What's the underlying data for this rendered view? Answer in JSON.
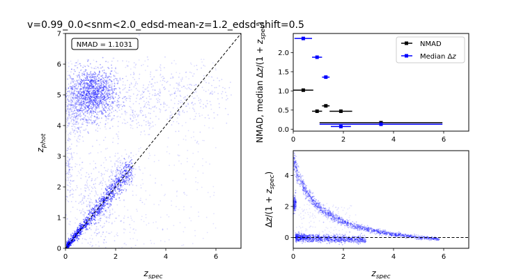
{
  "figure": {
    "suptitle": "v=0.99_0.0<snm<2.0_edsd-mean-z=1.2_edsd-shift=0.5",
    "colors": {
      "nmad": "#000000",
      "median": "#0000ff",
      "points": "#0000ff",
      "diag": "#000000"
    }
  },
  "chart_data": [
    {
      "type": "scatter",
      "xlabel": "z_spec",
      "ylabel": "z_phot",
      "xlim": [
        0,
        7
      ],
      "ylim": [
        0,
        7
      ],
      "xticks": [
        0,
        2,
        4,
        6
      ],
      "yticks": [
        0,
        1,
        2,
        3,
        4,
        5,
        6,
        7
      ],
      "annotation": "NMAD = 1.1031",
      "reference_line": "y = x",
      "density_regions": [
        {
          "cx": 1.1,
          "cy": 5.05,
          "sx": 0.45,
          "sy": 0.4,
          "weight": 5
        },
        {
          "cx": 0.4,
          "cy": 4.6,
          "sx": 0.3,
          "sy": 0.5,
          "weight": 2
        },
        {
          "cx": 2.5,
          "cy": 4.8,
          "sx": 1.2,
          "sy": 0.6,
          "weight": 1.5
        },
        {
          "cx": 4.5,
          "cy": 5.0,
          "sx": 1.2,
          "sy": 0.5,
          "weight": 1
        },
        {
          "cx": 0.15,
          "cy": 2.5,
          "sx": 0.1,
          "sy": 0.6,
          "weight": 0.5
        },
        {
          "cx": 1.2,
          "cy": 1.3,
          "sx": 0.5,
          "sy": 0.7,
          "weight": 1.5
        },
        {
          "cx": 2.3,
          "cy": 2.4,
          "sx": 0.3,
          "sy": 0.3,
          "weight": 0.8
        }
      ]
    },
    {
      "type": "scatter",
      "xlabel": "",
      "ylabel": "NMAD, median Δz/(1 + z_spec)",
      "xlim": [
        0,
        7
      ],
      "ylim": [
        -0.05,
        2.5
      ],
      "xticks": [
        0,
        2,
        4,
        6
      ],
      "yticks": [
        0.0,
        0.5,
        1.0,
        1.5,
        2.0
      ],
      "legend": {
        "placement": "upper right",
        "entries": [
          "NMAD",
          "Median Δz"
        ]
      },
      "series": [
        {
          "name": "NMAD",
          "points": [
            {
              "x": 0.4,
              "y": 1.02,
              "xerr": 0.4
            },
            {
              "x": 0.95,
              "y": 0.47,
              "xerr": 0.2
            },
            {
              "x": 1.3,
              "y": 0.61,
              "xerr": 0.15
            },
            {
              "x": 1.9,
              "y": 0.47,
              "xerr": 0.45
            },
            {
              "x": 3.5,
              "y": 0.17,
              "xerr": 2.45
            }
          ]
        },
        {
          "name": "Median Δz",
          "points": [
            {
              "x": 0.4,
              "y": 2.37,
              "xerr": 0.35
            },
            {
              "x": 0.95,
              "y": 1.88,
              "xerr": 0.2
            },
            {
              "x": 1.3,
              "y": 1.36,
              "xerr": 0.15
            },
            {
              "x": 1.9,
              "y": 0.07,
              "xerr": 0.4
            },
            {
              "x": 3.5,
              "y": 0.13,
              "xerr": 2.45
            }
          ]
        }
      ]
    },
    {
      "type": "scatter",
      "xlabel": "z_spec",
      "ylabel": "Δz/(1 + z_spec)",
      "xlim": [
        0,
        7
      ],
      "ylim": [
        -0.7,
        5.6
      ],
      "xticks": [
        0,
        2,
        4,
        6
      ],
      "yticks": [
        0,
        2,
        4
      ],
      "reference_line": "y = 0",
      "density_regions": [
        {
          "shape": "curve",
          "x0": 0.05,
          "x1": 5.9,
          "weight": 4
        },
        {
          "shape": "band",
          "x0": 0.2,
          "x1": 2.8,
          "y": 0.0,
          "weight": 3
        },
        {
          "shape": "band",
          "x0": 0.0,
          "x1": 0.15,
          "y": 2.2,
          "weight": 0.5
        }
      ]
    }
  ]
}
